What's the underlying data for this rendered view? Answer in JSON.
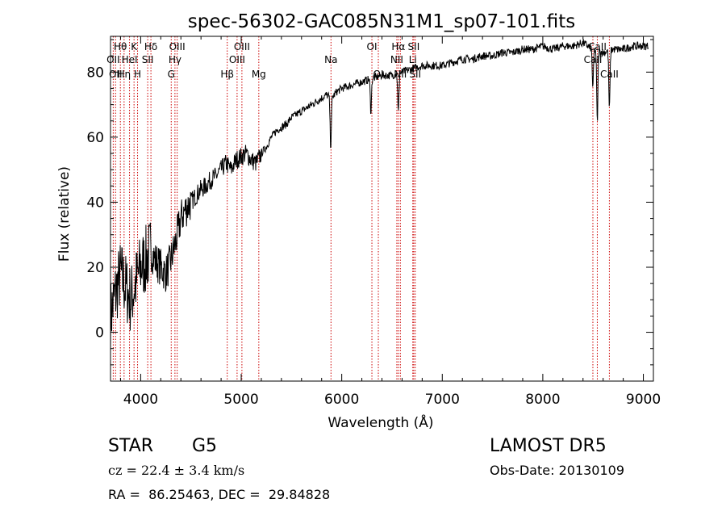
{
  "chart_data": {
    "type": "line",
    "title": "spec-56302-GAC085N31M1_sp07-101.fits",
    "xlabel": "Wavelength (Å)",
    "ylabel": "Flux (relative)",
    "xlim": [
      3700,
      9100
    ],
    "ylim": [
      -15,
      91
    ],
    "xticks": [
      4000,
      5000,
      6000,
      7000,
      8000,
      9000
    ],
    "yticks": [
      0,
      20,
      40,
      60,
      80
    ],
    "grid": false,
    "legend": "none",
    "line_color": "#000000",
    "marker_color": "#cc0000",
    "series": [
      {
        "x": [
          3700,
          3750,
          3800,
          3850,
          3900,
          3950,
          4000,
          4050,
          4100,
          4150,
          4200,
          4250,
          4300,
          4350,
          4400,
          4450,
          4500,
          4550,
          4600,
          4650,
          4700,
          4750,
          4800,
          4850,
          4900,
          4950,
          5000,
          5050,
          5100,
          5150,
          5200,
          5250,
          5300,
          5350,
          5400,
          5450,
          5500,
          5550,
          5600,
          5650,
          5700,
          5750,
          5800,
          5850,
          5900,
          5950,
          6000,
          6100,
          6200,
          6300,
          6400,
          6500,
          6600,
          6700,
          6800,
          6900,
          7000,
          7100,
          7200,
          7300,
          7400,
          7500,
          7600,
          7700,
          7800,
          7900,
          8000,
          8100,
          8200,
          8300,
          8400,
          8500,
          8600,
          8700,
          8800,
          8900,
          9000,
          9050
        ],
        "y": [
          5,
          12,
          18,
          14,
          10,
          15,
          20,
          22,
          25,
          22,
          20,
          18,
          22,
          28,
          35,
          38,
          40,
          42,
          44,
          45,
          47,
          48,
          50,
          52,
          50,
          53,
          54,
          55,
          53,
          52,
          55,
          57,
          60,
          62,
          63,
          64,
          66,
          67,
          68,
          69,
          70,
          71,
          72,
          73,
          72,
          74,
          75,
          76,
          77,
          78,
          79,
          79,
          80,
          81,
          82,
          82,
          82,
          83,
          84,
          84,
          85,
          85,
          86,
          86,
          87,
          87,
          88,
          87,
          88,
          88,
          89,
          87,
          86,
          87,
          87,
          88,
          88,
          88
        ]
      }
    ],
    "absorption_dips": [
      {
        "x": 5890,
        "depth": 15
      },
      {
        "x": 6290,
        "depth": 10
      },
      {
        "x": 6563,
        "depth": 12
      },
      {
        "x": 8498,
        "depth": 12
      },
      {
        "x": 8542,
        "depth": 22
      },
      {
        "x": 8662,
        "depth": 18
      }
    ],
    "line_markers": [
      {
        "x": 3727,
        "label": "OII",
        "row": 2
      },
      {
        "x": 3750,
        "label": "OII",
        "row": 3
      },
      {
        "x": 3798,
        "label": "Hθ",
        "row": 1
      },
      {
        "x": 3835,
        "label": "Hη",
        "row": 3
      },
      {
        "x": 3889,
        "label": "HeI",
        "row": 2
      },
      {
        "x": 3934,
        "label": "K",
        "row": 1
      },
      {
        "x": 3969,
        "label": "H",
        "row": 3
      },
      {
        "x": 4070,
        "label": "SII",
        "row": 2
      },
      {
        "x": 4102,
        "label": "Hδ",
        "row": 1
      },
      {
        "x": 4304,
        "label": "G",
        "row": 3
      },
      {
        "x": 4341,
        "label": "Hγ",
        "row": 2
      },
      {
        "x": 4363,
        "label": "OIII",
        "row": 1
      },
      {
        "x": 4861,
        "label": "Hβ",
        "row": 3
      },
      {
        "x": 4959,
        "label": "OIII",
        "row": 2
      },
      {
        "x": 5007,
        "label": "OIII",
        "row": 1
      },
      {
        "x": 5175,
        "label": "Mg",
        "row": 3
      },
      {
        "x": 5893,
        "label": "Na",
        "row": 2
      },
      {
        "x": 6300,
        "label": "OI",
        "row": 1
      },
      {
        "x": 6364,
        "label": "OI",
        "row": 3
      },
      {
        "x": 6548,
        "label": "NII",
        "row": 2
      },
      {
        "x": 6563,
        "label": "Hα",
        "row": 1
      },
      {
        "x": 6583,
        "label": "NII",
        "row": 3
      },
      {
        "x": 6707,
        "label": "Li",
        "row": 2
      },
      {
        "x": 6716,
        "label": "SII",
        "row": 1
      },
      {
        "x": 6731,
        "label": "SII",
        "row": 3
      },
      {
        "x": 8498,
        "label": "CaII",
        "row": 2
      },
      {
        "x": 8542,
        "label": "CaII",
        "row": 1
      },
      {
        "x": 8662,
        "label": "CaII",
        "row": 3
      }
    ]
  },
  "footer": {
    "object_class": "STAR",
    "subclass": "G5",
    "survey": "LAMOST DR5",
    "cz": "cz = 22.4 ± 3.4 km/s",
    "obs_date": "Obs-Date: 20130109",
    "coords": "RA =  86.25463, DEC =  29.84828"
  }
}
